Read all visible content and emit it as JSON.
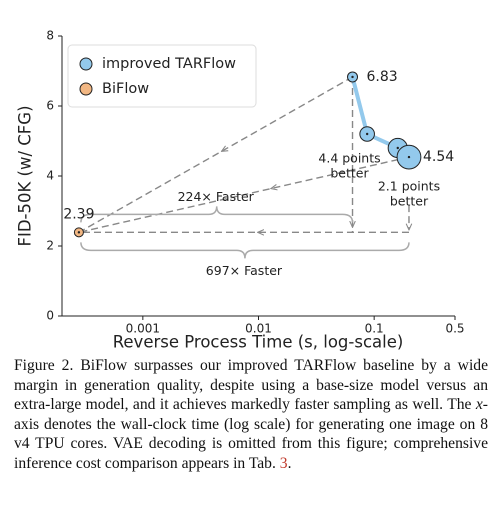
{
  "chart_data": {
    "type": "scatter",
    "xlabel": "Reverse Process Time (s, log-scale)",
    "ylabel": "FID-50K (w/ CFG)",
    "xlog": true,
    "xlim": [
      0.0002,
      0.5
    ],
    "xticks": [
      0.001,
      0.01,
      0.1,
      0.5
    ],
    "ylim": [
      0,
      8
    ],
    "yticks": [
      0,
      2,
      4,
      6,
      8
    ],
    "legend": "upper left",
    "series": [
      {
        "name": "improved TARFlow",
        "color": "#93c9ec",
        "x": [
          0.065,
          0.087,
          0.16,
          0.2
        ],
        "values": [
          6.83,
          5.2,
          4.8,
          4.54
        ]
      },
      {
        "name": "BiFlow",
        "color": "#f2b783",
        "x": [
          0.00028
        ],
        "values": [
          2.39
        ]
      }
    ],
    "annotations": {
      "gain_a": [
        "4.4 points",
        "better"
      ],
      "gain_b": [
        "2.1 points",
        "better"
      ],
      "speed_a": "224× Faster",
      "speed_b": "697× Faster"
    }
  },
  "caption": {
    "label": "Figure 2.",
    "text1": "BiFlow surpasses our improved TARFlow baseline by a wide margin in generation quality, despite using a base-size model versus an extra-large model, and it achieves markedly faster sampling as well. The",
    "math": "x",
    "text2": "-axis denotes the wall-clock time (log scale) for generating one image on 8 v4 TPU cores.  VAE decoding is omitted from this figure; comprehensive inference cost comparison appears in Tab.",
    "ref": "3",
    "end": "."
  }
}
